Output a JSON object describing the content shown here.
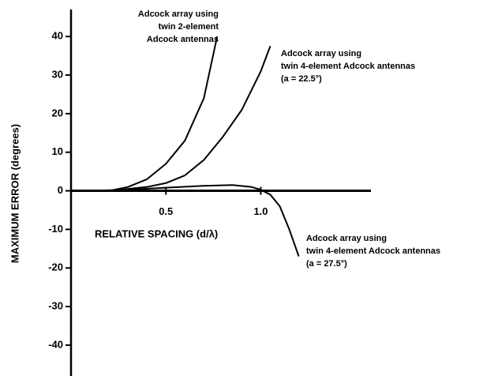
{
  "chart_data": {
    "type": "line",
    "xlabel": "RELATIVE SPACING (d/λ)",
    "ylabel": "MAXIMUM ERROR (degrees)",
    "xlim": [
      0,
      1.58
    ],
    "ylim": [
      -48,
      47
    ],
    "xticks": [
      0.5,
      {
        "value": 1,
        "label": "1.0"
      }
    ],
    "yticks": [
      -40,
      -30,
      -20,
      -10,
      0,
      10,
      20,
      30,
      40
    ],
    "series": [
      {
        "color": "#000000",
        "x": [
          0.2,
          0.3,
          0.4,
          0.5,
          0.6,
          0.7,
          0.77
        ],
        "values": [
          0,
          1,
          3,
          7,
          13,
          24,
          40
        ]
      },
      {
        "color": "#000000",
        "x": [
          0.2,
          0.4,
          0.5,
          0.6,
          0.7,
          0.8,
          0.9,
          1.0,
          1.05
        ],
        "values": [
          0,
          1,
          2,
          4,
          8,
          14,
          21,
          31,
          37.5
        ]
      },
      {
        "color": "#000000",
        "x": [
          0.1,
          0.3,
          0.5,
          0.7,
          0.85,
          0.95,
          1.0,
          1.05,
          1.1,
          1.15,
          1.2
        ],
        "values": [
          0,
          0.3,
          0.8,
          1.3,
          1.5,
          1,
          0.3,
          -1,
          -4,
          -10,
          -17
        ]
      }
    ],
    "annotations": [
      {
        "lines": [
          "Adcock array using",
          "twin 2-element",
          "Adcock antennas"
        ]
      },
      {
        "lines": [
          "Adcock array using",
          "twin 4-element Adcock antennas",
          "(a = 22.5°)"
        ]
      },
      {
        "lines": [
          "Adcock array using",
          "twin 4-element Adcock antennas",
          "(a = 27.5°)"
        ]
      }
    ]
  }
}
